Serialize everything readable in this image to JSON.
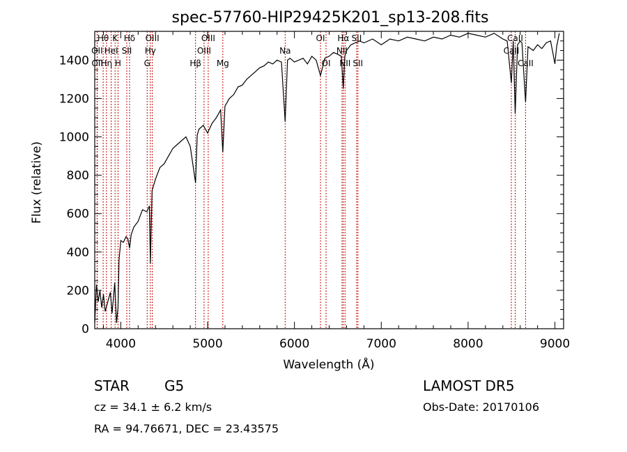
{
  "chart_data": {
    "type": "line",
    "title": "spec-57760-HIP29425K201_sp13-208.fits",
    "xlabel": "Wavelength (Å)",
    "ylabel": "Flux (relative)",
    "xlim": [
      3700,
      9100
    ],
    "ylim": [
      0,
      1550
    ],
    "xticks": [
      4000,
      5000,
      6000,
      7000,
      8000,
      9000
    ],
    "yticks": [
      0,
      200,
      400,
      600,
      800,
      1000,
      1200,
      1400
    ],
    "line_color": "#000000",
    "marker_color": "#c00000",
    "spectrum": {
      "x": [
        3700,
        3720,
        3740,
        3760,
        3780,
        3800,
        3820,
        3850,
        3880,
        3900,
        3930,
        3950,
        3968,
        3980,
        4000,
        4030,
        4060,
        4080,
        4101,
        4120,
        4150,
        4200,
        4250,
        4300,
        4330,
        4340,
        4360,
        4400,
        4450,
        4500,
        4550,
        4600,
        4650,
        4700,
        4750,
        4800,
        4861,
        4880,
        4900,
        4950,
        5000,
        5050,
        5100,
        5150,
        5175,
        5200,
        5250,
        5300,
        5350,
        5400,
        5450,
        5500,
        5550,
        5600,
        5650,
        5700,
        5750,
        5800,
        5850,
        5893,
        5920,
        5950,
        6000,
        6050,
        6100,
        6150,
        6200,
        6250,
        6300,
        6350,
        6400,
        6450,
        6500,
        6540,
        6563,
        6580,
        6600,
        6650,
        6700,
        6750,
        6800,
        6900,
        7000,
        7100,
        7200,
        7300,
        7400,
        7500,
        7600,
        7700,
        7800,
        7900,
        8000,
        8100,
        8200,
        8300,
        8400,
        8450,
        8498,
        8520,
        8542,
        8570,
        8600,
        8620,
        8662,
        8690,
        8750,
        8800,
        8850,
        8900,
        8950,
        8980,
        9000,
        9020,
        9050
      ],
      "y": [
        30,
        230,
        140,
        200,
        110,
        180,
        90,
        140,
        190,
        80,
        240,
        30,
        110,
        360,
        460,
        450,
        480,
        470,
        420,
        490,
        530,
        560,
        620,
        610,
        640,
        340,
        720,
        780,
        840,
        860,
        900,
        940,
        960,
        980,
        1000,
        950,
        760,
        1010,
        1040,
        1060,
        1020,
        1070,
        1100,
        1140,
        920,
        1160,
        1200,
        1220,
        1260,
        1270,
        1300,
        1320,
        1340,
        1360,
        1370,
        1390,
        1380,
        1400,
        1390,
        1080,
        1400,
        1410,
        1390,
        1400,
        1410,
        1380,
        1420,
        1400,
        1320,
        1410,
        1420,
        1440,
        1430,
        1420,
        1250,
        1420,
        1450,
        1480,
        1490,
        1500,
        1490,
        1510,
        1480,
        1510,
        1500,
        1520,
        1510,
        1500,
        1520,
        1510,
        1530,
        1520,
        1540,
        1530,
        1520,
        1540,
        1510,
        1500,
        1280,
        1500,
        1120,
        1480,
        1500,
        1490,
        1180,
        1470,
        1450,
        1480,
        1460,
        1490,
        1500,
        1430,
        1380,
        1470,
        1540
      ]
    },
    "lines": [
      {
        "name": "Hθ",
        "x": 3797,
        "row": 0
      },
      {
        "name": "K",
        "x": 3934,
        "row": 0
      },
      {
        "name": "Hδ",
        "x": 4101,
        "row": 0
      },
      {
        "name": "OIII",
        "x": 4363,
        "row": 0
      },
      {
        "name": "OIII",
        "x": 5007,
        "row": 0
      },
      {
        "name": "OI",
        "x": 6300,
        "row": 0
      },
      {
        "name": "Hα",
        "x": 6563,
        "row": 0
      },
      {
        "name": "SII",
        "x": 6716,
        "row": 0
      },
      {
        "name": "CaII",
        "x": 8542,
        "row": 0
      },
      {
        "name": "OII",
        "x": 3727,
        "row": 1
      },
      {
        "name": "HeI",
        "x": 3889,
        "row": 1
      },
      {
        "name": "SII",
        "x": 4069,
        "row": 1
      },
      {
        "name": "Hγ",
        "x": 4340,
        "row": 1
      },
      {
        "name": "OIII",
        "x": 4959,
        "row": 1
      },
      {
        "name": "Na",
        "x": 5893,
        "row": 1
      },
      {
        "name": "NII",
        "x": 6548,
        "row": 1
      },
      {
        "name": "CaII",
        "x": 8498,
        "row": 1
      },
      {
        "name": "OII",
        "x": 3729,
        "row": 2
      },
      {
        "name": "Hη",
        "x": 3835,
        "row": 2
      },
      {
        "name": "H",
        "x": 3968,
        "row": 2
      },
      {
        "name": "G",
        "x": 4304,
        "row": 2
      },
      {
        "name": "Hβ",
        "x": 4861,
        "row": 2
      },
      {
        "name": "Mg",
        "x": 5175,
        "row": 2
      },
      {
        "name": "OI",
        "x": 6364,
        "row": 2
      },
      {
        "name": "NII",
        "x": 6583,
        "row": 2
      },
      {
        "name": "SII",
        "x": 6731,
        "row": 2
      },
      {
        "name": "CaII",
        "x": 8662,
        "row": 2
      }
    ]
  },
  "info": {
    "class": "STAR",
    "subclass": "G5",
    "survey": "LAMOST DR5",
    "cz": "cz = 34.1 ± 6.2 km/s",
    "obs_date": "Obs-Date: 20170106",
    "radec": "RA =  94.76671, DEC =  23.43575"
  }
}
